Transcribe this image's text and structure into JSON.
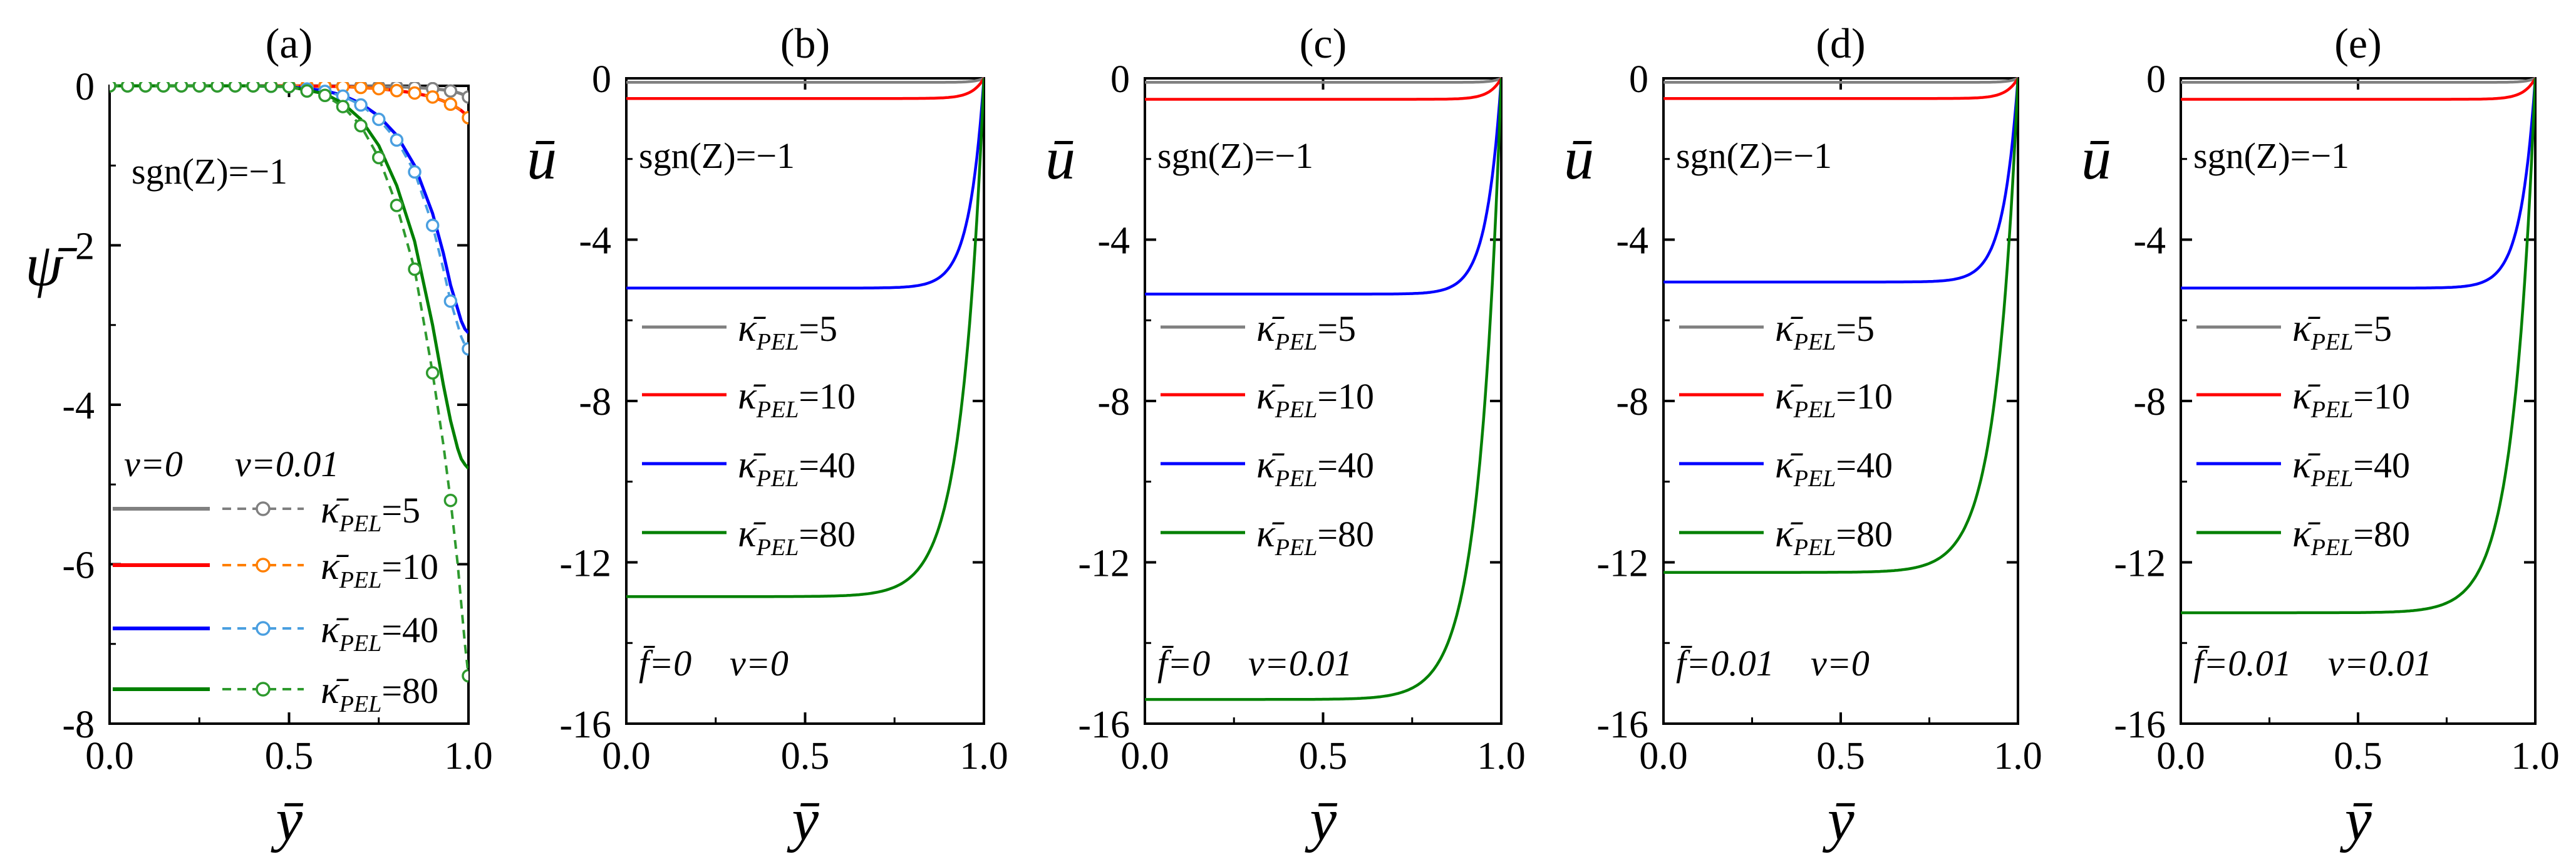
{
  "colors": {
    "k5": "#808080",
    "k10": "#ff0000",
    "k40": "#0000ff",
    "k80": "#008000",
    "c5": "#808080",
    "c10": "#ff7f00",
    "c40": "#4a9fe0",
    "c80": "#2e9a2e"
  },
  "chart_data": [
    {
      "panel_label": "(a)",
      "type": "line",
      "title": "",
      "xlabel": "ȳ",
      "ylabel": "ψ̄",
      "xlim": [
        0.0,
        1.0
      ],
      "ylim": [
        -8,
        0
      ],
      "xticks": [
        "0.0",
        "0.5",
        "1.0"
      ],
      "yticks": [
        "0",
        "-2",
        "-4",
        "-6",
        "-8"
      ],
      "annotation": "sgn(Z)=−1",
      "legend_header": [
        "ν=0",
        "ν=0.01"
      ],
      "legend_prefix": "κ̄",
      "legend_sub": "PEL",
      "x": [
        0.0,
        0.1,
        0.2,
        0.3,
        0.4,
        0.5,
        0.6,
        0.65,
        0.7,
        0.75,
        0.8,
        0.85,
        0.9,
        0.93,
        0.95,
        0.97,
        0.98,
        0.99,
        1.0
      ],
      "series": [
        {
          "name": "=5",
          "color_key": "k5",
          "marker_color_key": "c5",
          "values": [
            0,
            0,
            0,
            0,
            0,
            0,
            0,
            -0.002,
            -0.005,
            -0.008,
            -0.012,
            -0.02,
            -0.035,
            -0.05,
            -0.065,
            -0.085,
            -0.1,
            -0.12,
            -0.14
          ],
          "values_nu": [
            0,
            0,
            0,
            0,
            0,
            0,
            0,
            -0.002,
            -0.005,
            -0.008,
            -0.012,
            -0.02,
            -0.035,
            -0.05,
            -0.065,
            -0.085,
            -0.1,
            -0.12,
            -0.14
          ]
        },
        {
          "name": "=10",
          "color_key": "k10",
          "marker_color_key": "c10",
          "values": [
            0,
            0,
            0,
            0,
            0,
            0,
            -0.005,
            -0.01,
            -0.02,
            -0.035,
            -0.06,
            -0.09,
            -0.14,
            -0.19,
            -0.23,
            -0.28,
            -0.31,
            -0.35,
            -0.4
          ],
          "values_nu": [
            0,
            0,
            0,
            0,
            0,
            0,
            -0.005,
            -0.01,
            -0.02,
            -0.035,
            -0.06,
            -0.09,
            -0.14,
            -0.19,
            -0.23,
            -0.28,
            -0.31,
            -0.35,
            -0.4
          ]
        },
        {
          "name": "=40",
          "color_key": "k40",
          "marker_color_key": "c40",
          "values": [
            0,
            0,
            0,
            0,
            0,
            -0.01,
            -0.06,
            -0.12,
            -0.22,
            -0.38,
            -0.62,
            -1.0,
            -1.6,
            -2.1,
            -2.5,
            -2.8,
            -2.95,
            -3.05,
            -3.1
          ],
          "values_nu": [
            0,
            0,
            0,
            0,
            0,
            -0.01,
            -0.07,
            -0.13,
            -0.24,
            -0.42,
            -0.68,
            -1.08,
            -1.75,
            -2.3,
            -2.7,
            -3.0,
            -3.15,
            -3.25,
            -3.3
          ]
        },
        {
          "name": "=80",
          "color_key": "k80",
          "marker_color_key": "c80",
          "values": [
            0,
            0,
            0,
            0,
            0,
            -0.01,
            -0.1,
            -0.22,
            -0.42,
            -0.75,
            -1.25,
            -1.95,
            -3.0,
            -3.75,
            -4.2,
            -4.55,
            -4.68,
            -4.75,
            -4.8
          ],
          "values_nu": [
            0,
            0,
            0,
            0,
            0,
            -0.01,
            -0.12,
            -0.26,
            -0.5,
            -0.9,
            -1.5,
            -2.3,
            -3.6,
            -4.5,
            -5.2,
            -6.0,
            -6.5,
            -7.0,
            -7.4
          ]
        }
      ]
    },
    {
      "panel_label": "(b)",
      "type": "line",
      "title": "",
      "xlabel": "ȳ",
      "ylabel": "ū",
      "xlim": [
        0.0,
        1.0
      ],
      "ylim": [
        -16,
        0
      ],
      "xticks": [
        "0.0",
        "0.5",
        "1.0"
      ],
      "yticks": [
        "0",
        "-4",
        "-8",
        "-12",
        "-16"
      ],
      "annotation": "sgn(Z)=−1",
      "params": [
        "f̄=0",
        "ν=0"
      ],
      "legend_prefix": "κ̄",
      "legend_sub": "PEL",
      "series": [
        {
          "name": "=5",
          "color_key": "k5",
          "plateau": -0.1
        },
        {
          "name": "=10",
          "color_key": "k10",
          "plateau": -0.5
        },
        {
          "name": "=40",
          "color_key": "k40",
          "plateau": -5.2
        },
        {
          "name": "=80",
          "color_key": "k80",
          "plateau": -12.85
        }
      ]
    },
    {
      "panel_label": "(c)",
      "type": "line",
      "title": "",
      "xlabel": "ȳ",
      "ylabel": "ū",
      "xlim": [
        0.0,
        1.0
      ],
      "ylim": [
        -16,
        0
      ],
      "xticks": [
        "0.0",
        "0.5",
        "1.0"
      ],
      "yticks": [
        "0",
        "-4",
        "-8",
        "-12",
        "-16"
      ],
      "annotation": "sgn(Z)=−1",
      "params": [
        "f̄=0",
        "ν=0.01"
      ],
      "legend_prefix": "κ̄",
      "legend_sub": "PEL",
      "series": [
        {
          "name": "=5",
          "color_key": "k5",
          "plateau": -0.1
        },
        {
          "name": "=10",
          "color_key": "k10",
          "plateau": -0.52
        },
        {
          "name": "=40",
          "color_key": "k40",
          "plateau": -5.35
        },
        {
          "name": "=80",
          "color_key": "k80",
          "plateau": -15.4
        }
      ]
    },
    {
      "panel_label": "(d)",
      "type": "line",
      "title": "",
      "xlabel": "ȳ",
      "ylabel": "ū",
      "xlim": [
        0.0,
        1.0
      ],
      "ylim": [
        -16,
        0
      ],
      "xticks": [
        "0.0",
        "0.5",
        "1.0"
      ],
      "yticks": [
        "0",
        "-4",
        "-8",
        "-12",
        "-16"
      ],
      "annotation": "sgn(Z)=−1",
      "params": [
        "f̄=0.01",
        "ν=0"
      ],
      "legend_prefix": "κ̄",
      "legend_sub": "PEL",
      "series": [
        {
          "name": "=5",
          "color_key": "k5",
          "plateau": -0.1
        },
        {
          "name": "=10",
          "color_key": "k10",
          "plateau": -0.5
        },
        {
          "name": "=40",
          "color_key": "k40",
          "plateau": -5.05
        },
        {
          "name": "=80",
          "color_key": "k80",
          "plateau": -12.25
        }
      ]
    },
    {
      "panel_label": "(e)",
      "type": "line",
      "title": "",
      "xlabel": "ȳ",
      "ylabel": "ū",
      "xlim": [
        0.0,
        1.0
      ],
      "ylim": [
        -16,
        0
      ],
      "xticks": [
        "0.0",
        "0.5",
        "1.0"
      ],
      "yticks": [
        "0",
        "-4",
        "-8",
        "-12",
        "-16"
      ],
      "annotation": "sgn(Z)=−1",
      "params": [
        "f̄=0.01",
        "ν=0.01"
      ],
      "legend_prefix": "κ̄",
      "legend_sub": "PEL",
      "series": [
        {
          "name": "=5",
          "color_key": "k5",
          "plateau": -0.1
        },
        {
          "name": "=10",
          "color_key": "k10",
          "plateau": -0.52
        },
        {
          "name": "=40",
          "color_key": "k40",
          "plateau": -5.2
        },
        {
          "name": "=80",
          "color_key": "k80",
          "plateau": -13.25
        }
      ]
    }
  ]
}
